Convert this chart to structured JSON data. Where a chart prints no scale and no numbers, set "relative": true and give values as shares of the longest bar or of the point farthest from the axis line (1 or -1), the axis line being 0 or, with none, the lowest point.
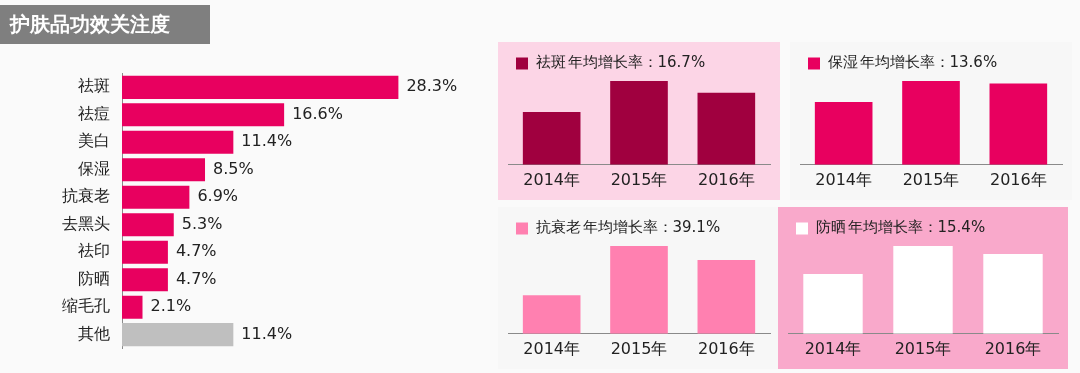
{
  "chart_data": [
    {
      "type": "bar",
      "title": "护肤品功效关注度",
      "orientation": "horizontal",
      "categories": [
        "祛斑",
        "祛痘",
        "美白",
        "保湿",
        "抗衰老",
        "去黑头",
        "祛印",
        "防晒",
        "缩毛孔",
        "其他"
      ],
      "values": [
        28.3,
        16.6,
        11.4,
        8.5,
        6.9,
        5.3,
        4.7,
        4.7,
        2.1,
        11.4
      ],
      "value_labels": [
        "28.3%",
        "16.6%",
        "11.4%",
        "8.5%",
        "6.9%",
        "5.3%",
        "4.7%",
        "4.7%",
        "2.1%",
        "11.4%"
      ],
      "colors": [
        "#e8005f",
        "#e8005f",
        "#e8005f",
        "#e8005f",
        "#e8005f",
        "#e8005f",
        "#e8005f",
        "#e8005f",
        "#e8005f",
        "#bfbfbf"
      ],
      "tick_labels": "y"
    },
    {
      "type": "bar",
      "relative": true,
      "categories": [
        "2014年",
        "2015年",
        "2016年"
      ],
      "series": [
        {
          "name": "祛斑",
          "color": "#a0003f",
          "values": [
            0.63,
            1,
            0.86
          ]
        }
      ],
      "annotations": [
        "年均增长率：16.7%"
      ],
      "legend": "top left"
    },
    {
      "type": "bar",
      "relative": true,
      "categories": [
        "2014年",
        "2015年",
        "2016年"
      ],
      "series": [
        {
          "name": "保湿",
          "color": "#e8005f",
          "values": [
            0.75,
            1,
            0.97
          ]
        }
      ],
      "annotations": [
        "年均增长率：13.6%"
      ],
      "legend": "top left"
    },
    {
      "type": "bar",
      "relative": true,
      "categories": [
        "2014年",
        "2015年",
        "2016年"
      ],
      "series": [
        {
          "name": "抗衰老",
          "color": "#ff80b0",
          "values": [
            0.44,
            1,
            0.84
          ]
        }
      ],
      "annotations": [
        "年均增长率：39.1%"
      ],
      "legend": "top left"
    },
    {
      "type": "bar",
      "relative": true,
      "categories": [
        "2014年",
        "2015年",
        "2016年"
      ],
      "series": [
        {
          "name": "防晒",
          "color": "#ffffff",
          "values": [
            0.68,
            1,
            0.91
          ]
        }
      ],
      "annotations": [
        "年均增长率：15.4%"
      ],
      "legend": "top left"
    }
  ]
}
